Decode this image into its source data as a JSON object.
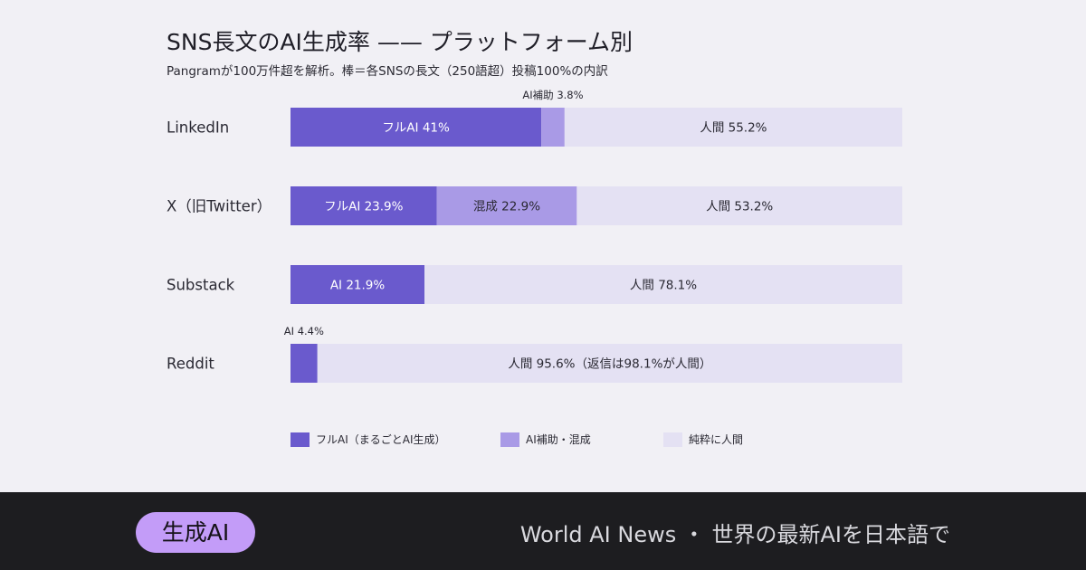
{
  "title": "SNS長文のAI生成率 —— プラットフォーム別",
  "subtitle": "Pangramが100万件超を解析。棒＝各SNSの長文（250語超）投稿100%の内訳",
  "chart_data": {
    "type": "bar",
    "orientation": "horizontal",
    "stacked": true,
    "xlim": [
      0,
      100
    ],
    "categories": [
      "LinkedIn",
      "X（旧Twitter）",
      "Substack",
      "Reddit"
    ],
    "rows": [
      {
        "category": "LinkedIn",
        "segments": [
          {
            "kind": "full_ai",
            "value": 41,
            "label": "フルAI 41%"
          },
          {
            "kind": "assisted",
            "value": 3.8,
            "label": "AI補助 3.8%",
            "label_position": "above"
          },
          {
            "kind": "human",
            "value": 55.2,
            "label": "人間 55.2%"
          }
        ]
      },
      {
        "category": "X（旧Twitter）",
        "segments": [
          {
            "kind": "full_ai",
            "value": 23.9,
            "label": "フルAI 23.9%"
          },
          {
            "kind": "assisted",
            "value": 22.9,
            "label": "混成 22.9%"
          },
          {
            "kind": "human",
            "value": 53.2,
            "label": "人間 53.2%"
          }
        ]
      },
      {
        "category": "Substack",
        "segments": [
          {
            "kind": "full_ai",
            "value": 21.9,
            "label": "AI 21.9%"
          },
          {
            "kind": "human",
            "value": 78.1,
            "label": "人間 78.1%"
          }
        ]
      },
      {
        "category": "Reddit",
        "segments": [
          {
            "kind": "full_ai",
            "value": 4.4,
            "label": "AI 4.4%",
            "label_position": "above"
          },
          {
            "kind": "human",
            "value": 95.6,
            "label": "人間 95.6%（返信は98.1%が人間）"
          }
        ]
      }
    ],
    "legend": [
      {
        "kind": "full_ai",
        "label": "フルAI（まるごとAI生成）"
      },
      {
        "kind": "assisted",
        "label": "AI補助・混成"
      },
      {
        "kind": "human",
        "label": "純粋に人間"
      }
    ],
    "legend_position": "bottom",
    "colors": {
      "full_ai": "#6a5acd",
      "assisted": "#a99ae6",
      "human": "#e4e1f3",
      "label_light": "#ffffff",
      "label_dark": "#2a2933"
    }
  },
  "footer": {
    "badge": "生成AI",
    "tagline": "World AI News ・ 世界の最新AIを日本語で"
  }
}
